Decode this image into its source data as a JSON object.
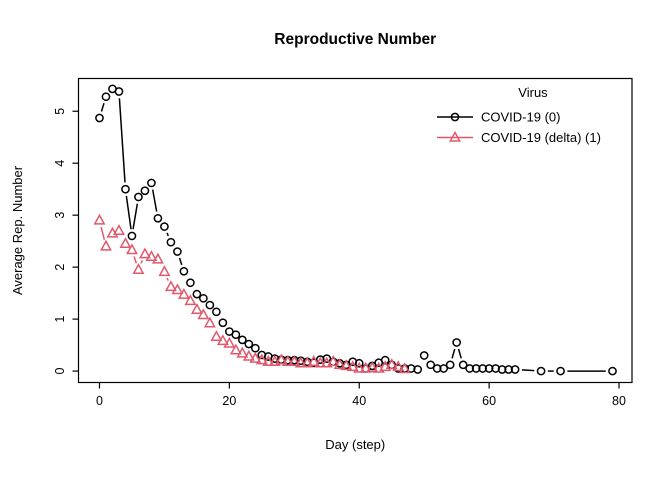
{
  "figure": {
    "background": "#ffffff",
    "frame_color": "#000000"
  },
  "chart_data": {
    "type": "line",
    "title": "Reproductive Number",
    "xlabel": "Day (step)",
    "ylabel": "Average Rep. Number",
    "xlim": [
      -3.23,
      82.0
    ],
    "ylim": [
      -0.22,
      5.63
    ],
    "x_ticks": [
      0,
      20,
      40,
      60,
      80
    ],
    "y_ticks": [
      0,
      1,
      2,
      3,
      4,
      5
    ],
    "grid": false,
    "plot_style": "points-with-gapped-lines",
    "legend": {
      "title": "Virus",
      "position": "top-right",
      "border": false,
      "entries": [
        {
          "label": "COVID-19 (0)",
          "color": "#000000",
          "marker": "circle"
        },
        {
          "label": "COVID-19 (delta) (1)",
          "color": "#E0586C",
          "marker": "triangle"
        }
      ]
    },
    "series": [
      {
        "name": "COVID-19 (0)",
        "color": "#000000",
        "marker": "circle",
        "points": [
          [
            0,
            4.87
          ],
          [
            1,
            5.28
          ],
          [
            2,
            5.43
          ],
          [
            3,
            5.38
          ],
          [
            4,
            3.5
          ],
          [
            5,
            2.6
          ],
          [
            6,
            3.35
          ],
          [
            7,
            3.47
          ],
          [
            8,
            3.62
          ],
          [
            9,
            2.94
          ],
          [
            10,
            2.78
          ],
          [
            11,
            2.48
          ],
          [
            12,
            2.3
          ],
          [
            13,
            1.92
          ],
          [
            14,
            1.7
          ],
          [
            15,
            1.48
          ],
          [
            16,
            1.4
          ],
          [
            17,
            1.27
          ],
          [
            18,
            1.14
          ],
          [
            19,
            0.93
          ],
          [
            20,
            0.76
          ],
          [
            21,
            0.7
          ],
          [
            22,
            0.6
          ],
          [
            23,
            0.52
          ],
          [
            24,
            0.44
          ],
          [
            25,
            0.31
          ],
          [
            26,
            0.28
          ],
          [
            27,
            0.24
          ],
          [
            28,
            0.22
          ],
          [
            29,
            0.21
          ],
          [
            30,
            0.21
          ],
          [
            31,
            0.2
          ],
          [
            32,
            0.18
          ],
          [
            33,
            0.16
          ],
          [
            34,
            0.22
          ],
          [
            35,
            0.24
          ],
          [
            36,
            0.18
          ],
          [
            37,
            0.15
          ],
          [
            38,
            0.12
          ],
          [
            39,
            0.18
          ],
          [
            40,
            0.15
          ],
          [
            41,
            0.05
          ],
          [
            42,
            0.1
          ],
          [
            43,
            0.16
          ],
          [
            44,
            0.21
          ],
          [
            45,
            0.12
          ],
          [
            46,
            0.05
          ],
          [
            47,
            0.05
          ],
          [
            48,
            0.05
          ],
          [
            49,
            0.03
          ],
          [
            50,
            0.3
          ],
          [
            51,
            0.12
          ],
          [
            52,
            0.05
          ],
          [
            53,
            0.05
          ],
          [
            54,
            0.12
          ],
          [
            55,
            0.55
          ],
          [
            56,
            0.12
          ],
          [
            57,
            0.05
          ],
          [
            58,
            0.05
          ],
          [
            59,
            0.05
          ],
          [
            60,
            0.05
          ],
          [
            61,
            0.05
          ],
          [
            62,
            0.03
          ],
          [
            63,
            0.03
          ],
          [
            64,
            0.03
          ],
          [
            68,
            0
          ],
          [
            71,
            0
          ],
          [
            79,
            0
          ]
        ]
      },
      {
        "name": "COVID-19 (delta) (1)",
        "color": "#E0586C",
        "marker": "triangle",
        "points": [
          [
            0,
            2.9
          ],
          [
            1,
            2.4
          ],
          [
            2,
            2.65
          ],
          [
            3,
            2.7
          ],
          [
            4,
            2.45
          ],
          [
            5,
            2.33
          ],
          [
            6,
            1.95
          ],
          [
            7,
            2.25
          ],
          [
            8,
            2.2
          ],
          [
            9,
            2.15
          ],
          [
            10,
            1.91
          ],
          [
            11,
            1.62
          ],
          [
            12,
            1.56
          ],
          [
            13,
            1.47
          ],
          [
            14,
            1.35
          ],
          [
            15,
            1.18
          ],
          [
            16,
            1.08
          ],
          [
            17,
            0.92
          ],
          [
            18,
            0.66
          ],
          [
            19,
            0.58
          ],
          [
            20,
            0.53
          ],
          [
            21,
            0.4
          ],
          [
            22,
            0.34
          ],
          [
            23,
            0.28
          ],
          [
            24,
            0.24
          ],
          [
            25,
            0.21
          ],
          [
            26,
            0.18
          ],
          [
            27,
            0.18
          ],
          [
            28,
            0.21
          ],
          [
            29,
            0.18
          ],
          [
            30,
            0.18
          ],
          [
            31,
            0.15
          ],
          [
            32,
            0.15
          ],
          [
            33,
            0.18
          ],
          [
            34,
            0.15
          ],
          [
            35,
            0.15
          ],
          [
            36,
            0.18
          ],
          [
            37,
            0.12
          ],
          [
            38,
            0.1
          ],
          [
            39,
            0.08
          ],
          [
            40,
            0.05
          ],
          [
            41,
            0.05
          ],
          [
            42,
            0.06
          ],
          [
            43,
            0.05
          ],
          [
            44,
            0.08
          ],
          [
            45,
            0.12
          ],
          [
            46,
            0.08
          ],
          [
            47,
            0.04
          ]
        ]
      }
    ]
  }
}
